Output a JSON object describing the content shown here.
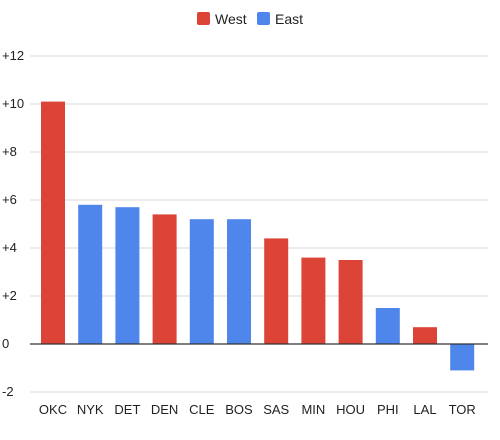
{
  "chart_data": {
    "type": "bar",
    "title": "",
    "xlabel": "",
    "ylabel": "",
    "categories": [
      "OKC",
      "NYK",
      "DET",
      "DEN",
      "CLE",
      "BOS",
      "SAS",
      "MIN",
      "HOU",
      "PHI",
      "LAL",
      "TOR"
    ],
    "values": [
      10.1,
      5.8,
      5.7,
      5.4,
      5.2,
      5.2,
      4.4,
      3.6,
      3.5,
      1.5,
      0.7,
      -1.1
    ],
    "conference": [
      "West",
      "East",
      "East",
      "West",
      "East",
      "East",
      "West",
      "West",
      "West",
      "East",
      "West",
      "East"
    ],
    "legend": [
      {
        "name": "West",
        "color": "#db4437"
      },
      {
        "name": "East",
        "color": "#4f86ec"
      }
    ],
    "legend_position": "top-center",
    "ylim": [
      -2,
      12
    ],
    "y_ticks": [
      -2,
      0,
      2,
      4,
      6,
      8,
      10,
      12
    ],
    "y_tick_labels": [
      "-2",
      "0",
      "+2",
      "+4",
      "+6",
      "+8",
      "+10",
      "+12"
    ],
    "grid": true
  }
}
